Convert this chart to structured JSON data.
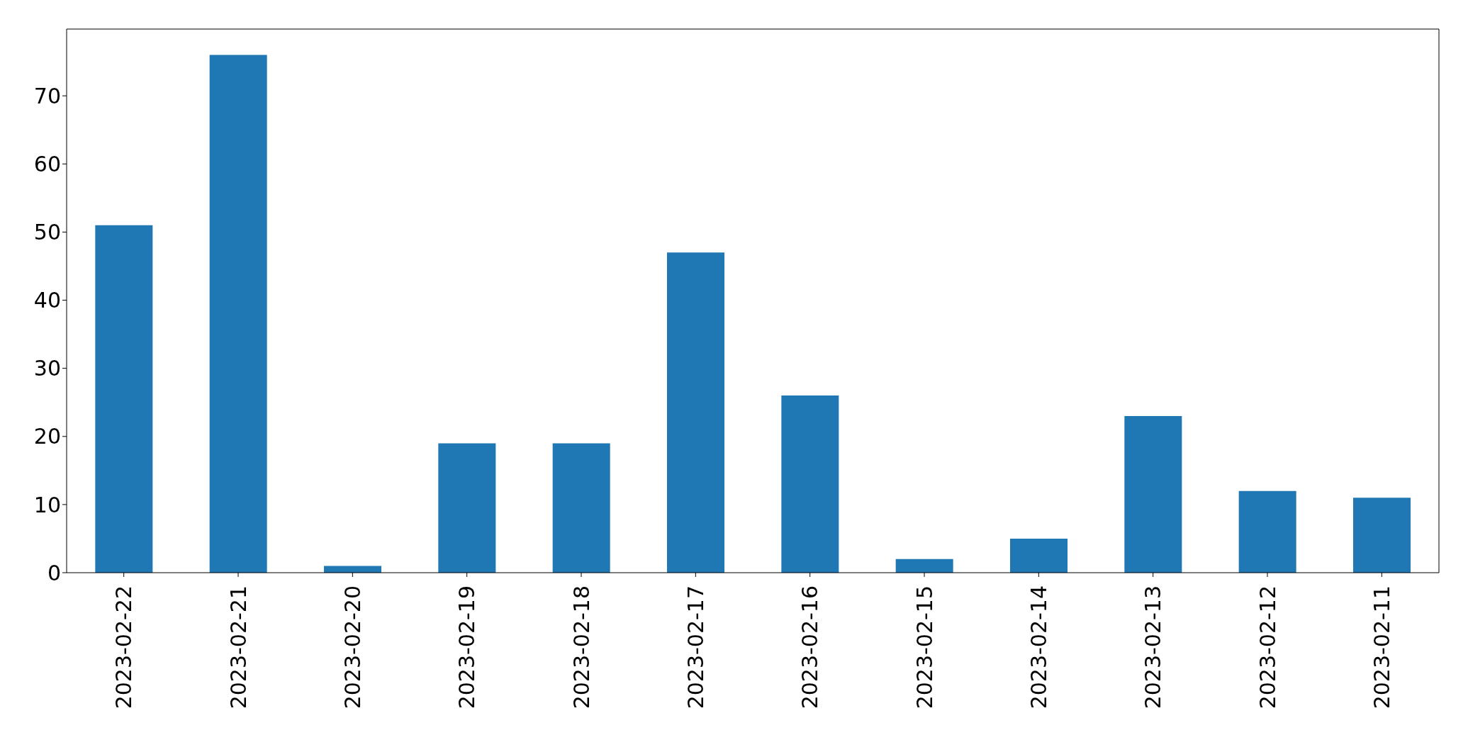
{
  "chart_data": {
    "type": "bar",
    "categories": [
      "2023-02-22",
      "2023-02-21",
      "2023-02-20",
      "2023-02-19",
      "2023-02-18",
      "2023-02-17",
      "2023-02-16",
      "2023-02-15",
      "2023-02-14",
      "2023-02-13",
      "2023-02-12",
      "2023-02-11"
    ],
    "values": [
      51,
      76,
      1,
      19,
      19,
      47,
      26,
      2,
      5,
      23,
      12,
      11
    ],
    "color": "#1f77b4",
    "ylim": [
      0,
      79.8
    ],
    "yticks": [
      0,
      10,
      20,
      30,
      40,
      50,
      60,
      70
    ],
    "grid": false,
    "legend": false
  }
}
